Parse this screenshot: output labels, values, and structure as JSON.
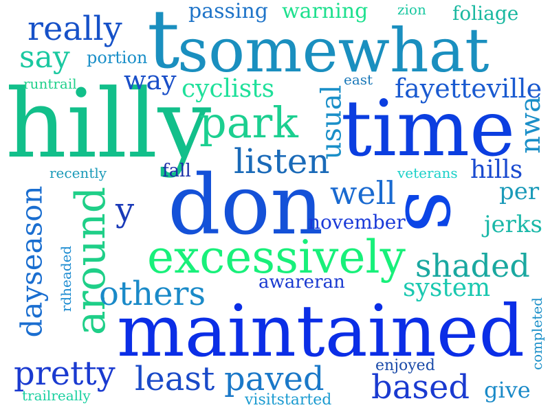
{
  "words": [
    {
      "text": "somewhat",
      "color": "#1a8fbf"
    },
    {
      "text": "t",
      "color": "#1a8fbf"
    },
    {
      "text": "hilly",
      "color": "#12bf8a"
    },
    {
      "text": "time",
      "color": "#0b3ee0"
    },
    {
      "text": "don",
      "color": "#1451d8"
    },
    {
      "text": "s",
      "color": "#0b45e6"
    },
    {
      "text": "maintained",
      "color": "#0b2ee6"
    },
    {
      "text": "excessively",
      "color": "#18f07a"
    },
    {
      "text": "around",
      "color": "#1fcf88"
    },
    {
      "text": "dayseason",
      "color": "#1a6ed0"
    },
    {
      "text": "really",
      "color": "#1651c8"
    },
    {
      "text": "passing",
      "color": "#1f74c8"
    },
    {
      "text": "warning",
      "color": "#1ee08e"
    },
    {
      "text": "zion",
      "color": "#18c7a0"
    },
    {
      "text": "foliage",
      "color": "#1ab8a0"
    },
    {
      "text": "say",
      "color": "#1ac8a0"
    },
    {
      "text": "portion",
      "color": "#1a8fc8"
    },
    {
      "text": "runtrail",
      "color": "#1fd08a"
    },
    {
      "text": "way",
      "color": "#1a4fc8"
    },
    {
      "text": "cyclists",
      "color": "#1fe09a"
    },
    {
      "text": "east",
      "color": "#1a78b8"
    },
    {
      "text": "fayetteville",
      "color": "#1a5ad0"
    },
    {
      "text": "park",
      "color": "#1ccf90"
    },
    {
      "text": "usual",
      "color": "#1a8fc8"
    },
    {
      "text": "nwa",
      "color": "#1a8fc8"
    },
    {
      "text": "listen",
      "color": "#1a6ab8"
    },
    {
      "text": "recently",
      "color": "#1a9ab8"
    },
    {
      "text": "fall",
      "color": "#1a2ea8"
    },
    {
      "text": "veterans",
      "color": "#1ad0c8"
    },
    {
      "text": "hills",
      "color": "#1a4ad0"
    },
    {
      "text": "well",
      "color": "#1a6ad0"
    },
    {
      "text": "per",
      "color": "#1a9ab8"
    },
    {
      "text": "y",
      "color": "#1a3ab8"
    },
    {
      "text": "november",
      "color": "#1a3ad8"
    },
    {
      "text": "jerks",
      "color": "#1ab8a8"
    },
    {
      "text": "shaded",
      "color": "#1aa8a0"
    },
    {
      "text": "rdheaded",
      "color": "#1a8ad0"
    },
    {
      "text": "others",
      "color": "#1a8ac8"
    },
    {
      "text": "awareran",
      "color": "#1a3ad0"
    },
    {
      "text": "system",
      "color": "#1ac8b0"
    },
    {
      "text": "completed",
      "color": "#1a8fc8"
    },
    {
      "text": "pretty",
      "color": "#1a3ad0"
    },
    {
      "text": "least",
      "color": "#1a4ac8"
    },
    {
      "text": "paved",
      "color": "#1a78c8"
    },
    {
      "text": "enjoyed",
      "color": "#1a4aa8"
    },
    {
      "text": "based",
      "color": "#1a3ad0"
    },
    {
      "text": "give",
      "color": "#1a8ac8"
    },
    {
      "text": "trailreally",
      "color": "#1ad0a0"
    },
    {
      "text": "visitstarted",
      "color": "#1a9ad0"
    }
  ]
}
